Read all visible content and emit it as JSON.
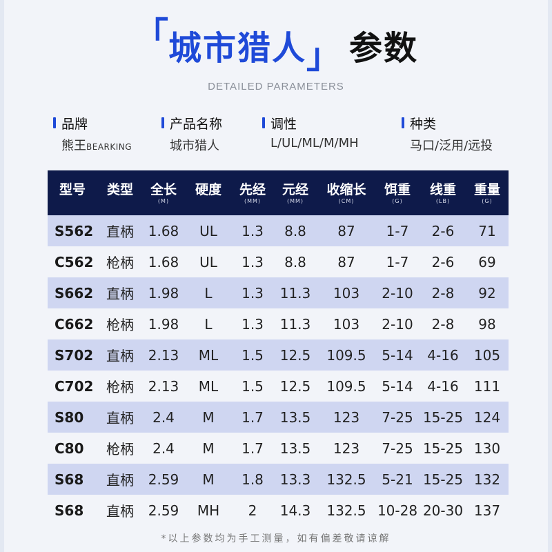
{
  "title": {
    "open_bracket": "「",
    "name": "城市猎人",
    "close_bracket": "」",
    "rest": "参数"
  },
  "subtitle": "DETAILED PARAMETERS",
  "info": [
    {
      "label": "品牌",
      "value": "熊王",
      "value_small": "BEARKING"
    },
    {
      "label": "产品名称",
      "value": "城市猎人",
      "value_small": ""
    },
    {
      "label": "调性",
      "value": "L/UL/ML/M/MH",
      "value_small": ""
    },
    {
      "label": "种类",
      "value": "马口/泛用/远投",
      "value_small": ""
    }
  ],
  "table": {
    "headers": [
      {
        "label": "型号",
        "unit": ""
      },
      {
        "label": "类型",
        "unit": ""
      },
      {
        "label": "全长",
        "unit": "(M)"
      },
      {
        "label": "硬度",
        "unit": ""
      },
      {
        "label": "先经",
        "unit": "(MM)"
      },
      {
        "label": "元经",
        "unit": "(MM)"
      },
      {
        "label": "收缩长",
        "unit": "(CM)"
      },
      {
        "label": "饵重",
        "unit": "(G)"
      },
      {
        "label": "线重",
        "unit": "(LB)"
      },
      {
        "label": "重量",
        "unit": "(G)"
      }
    ],
    "rows": [
      [
        "S562",
        "直柄",
        "1.68",
        "UL",
        "1.3",
        "8.8",
        "87",
        "1-7",
        "2-6",
        "71"
      ],
      [
        "C562",
        "枪柄",
        "1.68",
        "UL",
        "1.3",
        "8.8",
        "87",
        "1-7",
        "2-6",
        "69"
      ],
      [
        "S662",
        "直柄",
        "1.98",
        "L",
        "1.3",
        "11.3",
        "103",
        "2-10",
        "2-8",
        "92"
      ],
      [
        "C662",
        "枪柄",
        "1.98",
        "L",
        "1.3",
        "11.3",
        "103",
        "2-10",
        "2-8",
        "98"
      ],
      [
        "S702",
        "直柄",
        "2.13",
        "ML",
        "1.5",
        "12.5",
        "109.5",
        "5-14",
        "4-16",
        "105"
      ],
      [
        "C702",
        "枪柄",
        "2.13",
        "ML",
        "1.5",
        "12.5",
        "109.5",
        "5-14",
        "4-16",
        "111"
      ],
      [
        "S80",
        "直柄",
        "2.4",
        "M",
        "1.7",
        "13.5",
        "123",
        "7-25",
        "15-25",
        "124"
      ],
      [
        "C80",
        "枪柄",
        "2.4",
        "M",
        "1.7",
        "13.5",
        "123",
        "7-25",
        "15-25",
        "130"
      ],
      [
        "S68",
        "直柄",
        "2.59",
        "M",
        "1.8",
        "13.3",
        "132.5",
        "5-21",
        "15-25",
        "132"
      ],
      [
        "S68",
        "直柄",
        "2.59",
        "MH",
        "2",
        "14.3",
        "132.5",
        "10-28",
        "20-30",
        "137"
      ]
    ]
  },
  "footnote": "*以上参数均为手工测量，如有偏差敬请谅解",
  "colors": {
    "accent": "#1f4ad8",
    "header_bg": "#0e1a4a",
    "row_shade": "#cfd6f1",
    "page_bg": "#f2f4f9"
  }
}
